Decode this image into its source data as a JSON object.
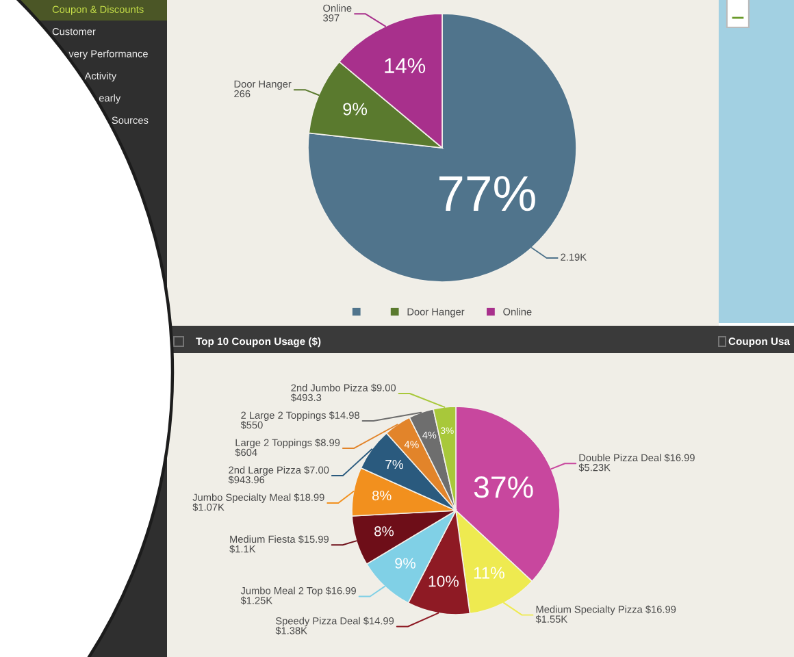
{
  "chart_data": [
    {
      "type": "other",
      "annotations": [
        "Coupon & Discounts",
        "Customer",
        "very Performance",
        "Activity",
        "early",
        "Sources"
      ],
      "colors": [
        "#c5de48",
        "#eeeeee",
        "#eeeeee",
        "#eeeeee",
        "#eeeeee",
        "#eeeeee"
      ]
    },
    {
      "type": "pie",
      "categories": [
        null,
        "Door Hanger",
        "Online"
      ],
      "values": [
        2190,
        266,
        397
      ],
      "colors": [
        "#50748c",
        "#5a7a2e",
        "#a8308c"
      ],
      "value_labels": [
        "2.19K",
        "266",
        "397"
      ],
      "annotations": [
        "77%",
        "9%",
        "14%"
      ],
      "legend": "bottom"
    },
    {
      "type": "pie",
      "title": "Top 10 Coupon Usage ($)",
      "categories": [
        "Double Pizza Deal $16.99",
        "Medium Specialty Pizza $16.99",
        "Speedy Pizza Deal $14.99",
        "Jumbo Meal 2 Top $16.99",
        "Medium Fiesta $15.99",
        "Jumbo Specialty Meal $18.99",
        "2nd Large Pizza $7.00",
        "Large 2 Toppings $8.99",
        "2 Large 2 Toppings $14.98",
        "2nd Jumbo Pizza $9.00"
      ],
      "values": [
        5230,
        1550,
        1380,
        1250,
        1100,
        1070,
        943.96,
        604,
        550,
        493.3
      ],
      "colors": [
        "#c8479e",
        "#eeea50",
        "#8e1a24",
        "#80d0e6",
        "#6e0e18",
        "#f2901e",
        "#2a5a7e",
        "#e2842a",
        "#6e6e6e",
        "#a8c83a"
      ],
      "value_labels": [
        "$5.23K",
        "$1.55K",
        "$1.38K",
        "$1.25K",
        "$1.1K",
        "$1.07K",
        "$943.96",
        "$604",
        "$550",
        "$493.3"
      ],
      "annotations": [
        "37%",
        "11%",
        "10%",
        "9%",
        "8%",
        "8%",
        "7%",
        "4%",
        "4%",
        "3%"
      ]
    },
    {
      "type": "other",
      "title": "Coupon Usa"
    }
  ]
}
